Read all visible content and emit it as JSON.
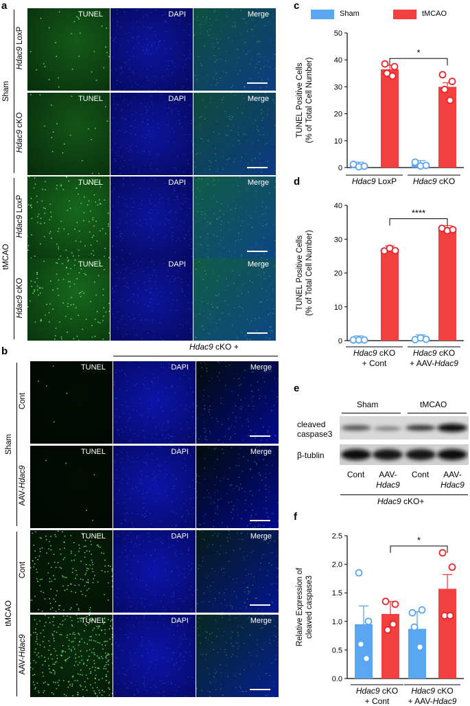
{
  "panel_labels": {
    "a": "a",
    "b": "b",
    "c": "c",
    "d": "d",
    "e": "e",
    "f": "f"
  },
  "channels": [
    "TUNEL",
    "DAPI",
    "Merge"
  ],
  "panel_a": {
    "group_sham": "Sham",
    "group_tmcao": "tMCAO",
    "rows": [
      {
        "gene": "Hdac9",
        "label": " LoxP"
      },
      {
        "gene": "Hdac9",
        "label": " cKO"
      },
      {
        "gene": "Hdac9",
        "label": " LoxP"
      },
      {
        "gene": "Hdac9",
        "label": " cKO"
      }
    ]
  },
  "panel_b": {
    "header_gene": "Hdac9",
    "header_rest": " cKO +",
    "group_sham": "Sham",
    "group_tmcao": "tMCAO",
    "rows": [
      {
        "prefix": "Cont",
        "gene": ""
      },
      {
        "prefix": "AAV-",
        "gene": "Hdac9"
      },
      {
        "prefix": "Cont",
        "gene": ""
      },
      {
        "prefix": "AAV-",
        "gene": "Hdac9"
      }
    ]
  },
  "legend": {
    "sham": "Sham",
    "tmcao": "tMCAO"
  },
  "colors": {
    "sham": "#5aa6f0",
    "tmcao": "#f1403f",
    "tmcao_dark": "#e8242a",
    "green": "#0a3a0a",
    "blue": "#0a0f5a"
  },
  "panel_e": {
    "group_sham": "Sham",
    "group_tmcao": "tMCAO",
    "band1_line1": "cleaved",
    "band1_line2": "caspase3",
    "band2": "β-tublin",
    "lane_labels": [
      {
        "l1": "Cont",
        "l2": ""
      },
      {
        "l1": "AAV-",
        "l2": "Hdac9"
      },
      {
        "l1": "Cont",
        "l2": ""
      },
      {
        "l1": "AAV-",
        "l2": "Hdac9"
      }
    ],
    "footer_gene": "Hdac9",
    "footer_rest": " cKO+"
  },
  "chart_data": [
    {
      "type": "bar",
      "panel": "c",
      "ylabel_line1": "TUNEL Positive Cells",
      "ylabel_line2": "(% of Total Cell Number)",
      "ylim": [
        0,
        50
      ],
      "yticks": [
        0,
        10,
        20,
        30,
        40,
        50
      ],
      "groups": [
        {
          "gene": "Hdac9",
          "label": " LoxP",
          "label2": ""
        },
        {
          "gene": "Hdac9",
          "label": " cKO",
          "label2": ""
        }
      ],
      "series": [
        {
          "name": "Sham",
          "values": [
            0.5,
            1.1
          ],
          "points": [
            [
              1.2,
              0.3,
              0.5
            ],
            [
              2.0,
              0.6,
              0.8
            ]
          ]
        },
        {
          "name": "tMCAO",
          "values": [
            36.5,
            30.0
          ],
          "points": [
            [
              38.5,
              37.5,
              35.0,
              34.0
            ],
            [
              34.5,
              32.0,
              29.0,
              25.0
            ]
          ]
        }
      ],
      "significance": {
        "text": "*",
        "between": [
          [
            0,
            1
          ],
          [
            1,
            1
          ]
        ]
      }
    },
    {
      "type": "bar",
      "panel": "d",
      "ylabel_line1": "TUNEL Positive Cells",
      "ylabel_line2": "(% of Total Cell Number)",
      "ylim": [
        0,
        40
      ],
      "yticks": [
        0,
        10,
        20,
        30,
        40
      ],
      "groups": [
        {
          "gene": "Hdac9",
          "label": " cKO",
          "label2": "+ Cont"
        },
        {
          "gene": "Hdac9",
          "label": " cKO",
          "label2": "+ AAV-Hdac9"
        }
      ],
      "series": [
        {
          "name": "Sham",
          "values": [
            0.2,
            0.5
          ],
          "points": [
            [
              0.2,
              0.2,
              0.2
            ],
            [
              0.3,
              0.8,
              0.4
            ]
          ]
        },
        {
          "name": "tMCAO",
          "values": [
            26.8,
            32.8
          ],
          "points": [
            [
              26.5,
              27.3,
              26.6
            ],
            [
              33.2,
              32.5,
              32.8
            ]
          ]
        }
      ],
      "significance": {
        "text": "****",
        "between": [
          [
            0,
            1
          ],
          [
            1,
            1
          ]
        ]
      }
    },
    {
      "type": "bar",
      "panel": "f",
      "ylabel_line1": "Relative Expression of",
      "ylabel_line2": "cleaved caspase3",
      "ylim": [
        0,
        2.5
      ],
      "yticks": [
        0.0,
        0.5,
        1.0,
        1.5,
        2.0,
        2.5
      ],
      "tick_format": 1,
      "groups": [
        {
          "gene": "Hdac9",
          "label": " cKO",
          "label2": "+ Cont"
        },
        {
          "gene": "Hdac9",
          "label": " cKO",
          "label2": "+ AAV-Hdac9"
        }
      ],
      "series": [
        {
          "name": "Sham",
          "values": [
            0.95,
            0.87
          ],
          "points": [
            [
              1.85,
              1.0,
              0.6,
              0.35
            ],
            [
              1.15,
              1.2,
              0.9,
              0.55
            ]
          ]
        },
        {
          "name": "tMCAO",
          "values": [
            1.13,
            1.57
          ],
          "points": [
            [
              1.35,
              1.3,
              0.85,
              0.95
            ],
            [
              2.2,
              1.95,
              1.1,
              1.1
            ]
          ]
        }
      ],
      "errors": [
        [
          0.32,
          0.3
        ],
        [
          0.22,
          0.25
        ]
      ],
      "significance": {
        "text": "*",
        "between": [
          [
            0,
            1
          ],
          [
            1,
            1
          ]
        ]
      }
    }
  ]
}
